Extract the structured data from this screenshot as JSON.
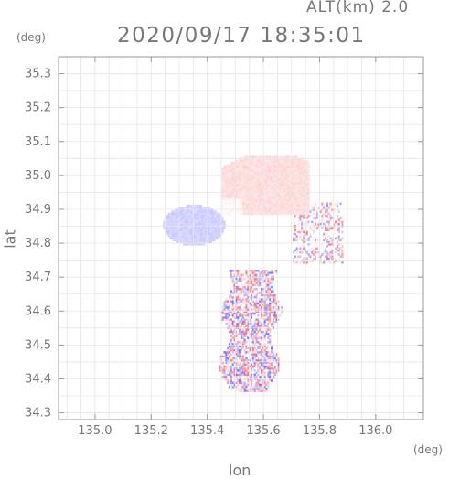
{
  "header": {
    "altitude_label": "ALT(km) 2.0",
    "timestamp": "2020/09/17 18:35:01",
    "y_unit": "(deg)",
    "x_unit": "(deg)"
  },
  "chart_data": {
    "type": "heatmap",
    "title": "2020/09/17 18:35:01",
    "subtitle": "ALT(km) 2.0",
    "xlabel": "lon",
    "ylabel": "lat",
    "x_unit": "(deg)",
    "y_unit": "(deg)",
    "xlim": [
      134.87,
      136.17
    ],
    "ylim": [
      34.28,
      35.35
    ],
    "x_ticks": [
      "135.0",
      "135.2",
      "135.4",
      "135.6",
      "135.8",
      "136.0"
    ],
    "x_tick_values": [
      135.0,
      135.2,
      135.4,
      135.6,
      135.8,
      136.0
    ],
    "y_ticks": [
      "34.3",
      "34.4",
      "34.5",
      "34.6",
      "34.7",
      "34.8",
      "34.9",
      "35.0",
      "35.1",
      "35.2",
      "35.3"
    ],
    "y_tick_values": [
      34.3,
      34.4,
      34.5,
      34.6,
      34.7,
      34.8,
      34.9,
      35.0,
      35.1,
      35.2,
      35.3
    ],
    "grid": true,
    "colors": {
      "positive": "#f08080",
      "negative": "#8080f0",
      "axis": "#999999"
    },
    "regions": [
      {
        "description": "northern area, weakly positive",
        "lon_range": [
          135.45,
          135.75
        ],
        "lat_range": [
          34.88,
          35.06
        ],
        "sign": "positive",
        "intensity": 0.3
      },
      {
        "description": "western area, weakly negative",
        "lon_range": [
          135.25,
          135.45
        ],
        "lat_range": [
          34.78,
          34.92
        ],
        "sign": "negative",
        "intensity": 0.35
      },
      {
        "description": "eastern scattered area, mixed",
        "lon_range": [
          135.7,
          135.88
        ],
        "lat_range": [
          34.73,
          34.92
        ],
        "sign": "mixed",
        "intensity": 0.6
      },
      {
        "description": "southern scattered area, mixed",
        "lon_range": [
          135.43,
          135.65
        ],
        "lat_range": [
          34.36,
          34.72
        ],
        "sign": "mixed",
        "intensity": 0.85
      }
    ]
  }
}
